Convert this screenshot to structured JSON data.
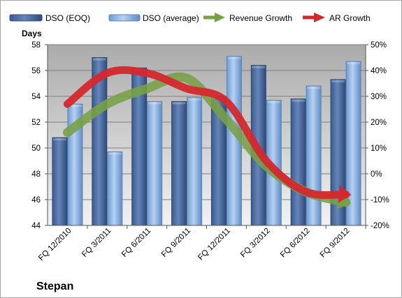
{
  "chart_data": {
    "type": "bar",
    "title": "Stepan",
    "y_axis_label": "Days",
    "categories": [
      "FQ 12/2010",
      "FQ 3/2011",
      "FQ 6/2011",
      "FQ 9/2011",
      "FQ 12/2011",
      "FQ 3/2012",
      "FQ 6/2012",
      "FQ 9/2012"
    ],
    "series": [
      {
        "name": "DSO (EOQ)",
        "kind": "bar",
        "axis": "left",
        "color": "#4f6fa3",
        "values": [
          50.8,
          57.0,
          56.2,
          53.6,
          54.0,
          56.4,
          53.8,
          55.3
        ]
      },
      {
        "name": "DSO (average)",
        "kind": "bar",
        "axis": "left",
        "color": "#8db3e2",
        "values": [
          53.4,
          49.7,
          53.6,
          53.9,
          57.1,
          53.7,
          54.8,
          56.7
        ]
      },
      {
        "name": "Revenue Growth",
        "kind": "trend-arrow",
        "axis": "right",
        "color": "#77a145",
        "values": [
          16,
          27,
          33,
          37,
          21,
          3,
          -7,
          -11
        ]
      },
      {
        "name": "AR Growth",
        "kind": "trend-arrow",
        "axis": "right",
        "color": "#d4282e",
        "values": [
          27,
          39,
          39,
          33,
          28,
          5,
          -7,
          -8
        ]
      }
    ],
    "ylim_left": [
      44,
      58
    ],
    "yticks_left": [
      "44",
      "46",
      "48",
      "50",
      "52",
      "54",
      "56",
      "58"
    ],
    "ylim_right": [
      -20,
      50
    ],
    "yticks_right": [
      "-20%",
      "-10%",
      "0%",
      "10%",
      "20%",
      "30%",
      "40%",
      "50%"
    ],
    "grid": true,
    "legend_position": "top",
    "plot_background": "#c9c9c9"
  }
}
